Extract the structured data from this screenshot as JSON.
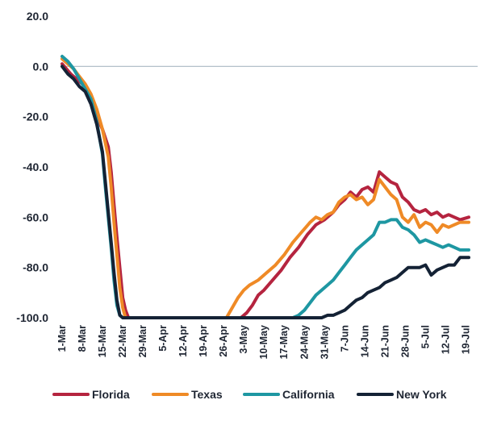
{
  "chart_data": {
    "type": "line",
    "title": "",
    "xlabel": "",
    "ylabel": "",
    "ylim": [
      -100,
      20
    ],
    "yticks": [
      "20.0",
      "0.0",
      "-20.0",
      "-40.0",
      "-60.0",
      "-80.0",
      "-100.0"
    ],
    "x_tick_labels": [
      "1-Mar",
      "8-Mar",
      "15-Mar",
      "22-Mar",
      "29-Mar",
      "5-Apr",
      "12-Apr",
      "19-Apr",
      "26-Apr",
      "3-May",
      "10-May",
      "17-May",
      "24-May",
      "31-May",
      "7-Jun",
      "14-Jun",
      "21-Jun",
      "28-Jun",
      "5-Jul",
      "12-Jul",
      "19-Jul"
    ],
    "x_unit": "days from 1-Mar",
    "xlim": [
      0,
      141
    ],
    "grid": false,
    "reference_line": 0,
    "legend_position": "bottom",
    "series": [
      {
        "name": "Florida",
        "color": "#b5243f",
        "points": [
          [
            0,
            1
          ],
          [
            3,
            -3
          ],
          [
            6,
            -6
          ],
          [
            8,
            -8
          ],
          [
            10,
            -13
          ],
          [
            12,
            -20
          ],
          [
            14,
            -25
          ],
          [
            16,
            -32
          ],
          [
            17,
            -42
          ],
          [
            18,
            -55
          ],
          [
            19,
            -68
          ],
          [
            20,
            -80
          ],
          [
            21,
            -92
          ],
          [
            22,
            -97
          ],
          [
            23,
            -100
          ],
          [
            62,
            -100
          ],
          [
            64,
            -98
          ],
          [
            66,
            -95
          ],
          [
            68,
            -91
          ],
          [
            70,
            -89
          ],
          [
            73,
            -85
          ],
          [
            76,
            -81
          ],
          [
            79,
            -76
          ],
          [
            82,
            -72
          ],
          [
            85,
            -67
          ],
          [
            88,
            -63
          ],
          [
            91,
            -61
          ],
          [
            94,
            -58
          ],
          [
            96,
            -55
          ],
          [
            98,
            -53
          ],
          [
            100,
            -50
          ],
          [
            102,
            -52
          ],
          [
            104,
            -49
          ],
          [
            106,
            -48
          ],
          [
            108,
            -50
          ],
          [
            110,
            -42
          ],
          [
            112,
            -44
          ],
          [
            114,
            -46
          ],
          [
            116,
            -47
          ],
          [
            118,
            -52
          ],
          [
            120,
            -54
          ],
          [
            122,
            -57
          ],
          [
            124,
            -58
          ],
          [
            126,
            -57
          ],
          [
            128,
            -59
          ],
          [
            130,
            -58
          ],
          [
            132,
            -60
          ],
          [
            134,
            -59
          ],
          [
            136,
            -60
          ],
          [
            138,
            -61
          ],
          [
            141,
            -60
          ]
        ]
      },
      {
        "name": "Texas",
        "color": "#ef8a26",
        "points": [
          [
            0,
            3
          ],
          [
            2,
            1
          ],
          [
            4,
            -1
          ],
          [
            6,
            -4
          ],
          [
            8,
            -7
          ],
          [
            10,
            -11
          ],
          [
            12,
            -17
          ],
          [
            14,
            -25
          ],
          [
            16,
            -36
          ],
          [
            17,
            -48
          ],
          [
            18,
            -62
          ],
          [
            19,
            -75
          ],
          [
            20,
            -88
          ],
          [
            21,
            -96
          ],
          [
            22,
            -100
          ],
          [
            57,
            -100
          ],
          [
            59,
            -96
          ],
          [
            61,
            -92
          ],
          [
            63,
            -89
          ],
          [
            65,
            -87
          ],
          [
            68,
            -85
          ],
          [
            71,
            -82
          ],
          [
            74,
            -79
          ],
          [
            77,
            -75
          ],
          [
            80,
            -70
          ],
          [
            83,
            -66
          ],
          [
            86,
            -62
          ],
          [
            88,
            -60
          ],
          [
            90,
            -61
          ],
          [
            92,
            -59
          ],
          [
            94,
            -58
          ],
          [
            96,
            -54
          ],
          [
            98,
            -52
          ],
          [
            100,
            -51
          ],
          [
            102,
            -53
          ],
          [
            104,
            -52
          ],
          [
            106,
            -55
          ],
          [
            108,
            -53
          ],
          [
            110,
            -45
          ],
          [
            112,
            -48
          ],
          [
            114,
            -51
          ],
          [
            116,
            -53
          ],
          [
            118,
            -60
          ],
          [
            120,
            -62
          ],
          [
            122,
            -59
          ],
          [
            124,
            -64
          ],
          [
            126,
            -62
          ],
          [
            128,
            -63
          ],
          [
            130,
            -66
          ],
          [
            132,
            -63
          ],
          [
            134,
            -64
          ],
          [
            136,
            -63
          ],
          [
            138,
            -62
          ],
          [
            141,
            -62
          ]
        ]
      },
      {
        "name": "California",
        "color": "#1e97a2",
        "points": [
          [
            0,
            4
          ],
          [
            2,
            2
          ],
          [
            4,
            -1
          ],
          [
            6,
            -5
          ],
          [
            8,
            -9
          ],
          [
            10,
            -13
          ],
          [
            12,
            -22
          ],
          [
            14,
            -35
          ],
          [
            15,
            -48
          ],
          [
            16,
            -60
          ],
          [
            17,
            -72
          ],
          [
            18,
            -85
          ],
          [
            19,
            -95
          ],
          [
            20,
            -99
          ],
          [
            21,
            -100
          ],
          [
            80,
            -100
          ],
          [
            82,
            -99
          ],
          [
            84,
            -97
          ],
          [
            86,
            -94
          ],
          [
            88,
            -91
          ],
          [
            90,
            -89
          ],
          [
            92,
            -87
          ],
          [
            94,
            -85
          ],
          [
            96,
            -82
          ],
          [
            98,
            -79
          ],
          [
            100,
            -76
          ],
          [
            102,
            -73
          ],
          [
            104,
            -71
          ],
          [
            106,
            -69
          ],
          [
            108,
            -67
          ],
          [
            110,
            -62
          ],
          [
            112,
            -62
          ],
          [
            114,
            -61
          ],
          [
            116,
            -61
          ],
          [
            118,
            -64
          ],
          [
            120,
            -65
          ],
          [
            122,
            -67
          ],
          [
            124,
            -70
          ],
          [
            126,
            -69
          ],
          [
            128,
            -70
          ],
          [
            130,
            -71
          ],
          [
            132,
            -72
          ],
          [
            134,
            -71
          ],
          [
            136,
            -72
          ],
          [
            138,
            -73
          ],
          [
            141,
            -73
          ]
        ]
      },
      {
        "name": "New York",
        "color": "#142235",
        "points": [
          [
            0,
            0
          ],
          [
            2,
            -3
          ],
          [
            4,
            -5
          ],
          [
            6,
            -8
          ],
          [
            8,
            -10
          ],
          [
            10,
            -15
          ],
          [
            12,
            -23
          ],
          [
            14,
            -34
          ],
          [
            15,
            -46
          ],
          [
            16,
            -58
          ],
          [
            17,
            -70
          ],
          [
            18,
            -82
          ],
          [
            19,
            -93
          ],
          [
            20,
            -99
          ],
          [
            21,
            -100
          ],
          [
            90,
            -100
          ],
          [
            92,
            -99
          ],
          [
            94,
            -99
          ],
          [
            96,
            -98
          ],
          [
            98,
            -97
          ],
          [
            100,
            -95
          ],
          [
            102,
            -93
          ],
          [
            104,
            -92
          ],
          [
            106,
            -90
          ],
          [
            108,
            -89
          ],
          [
            110,
            -88
          ],
          [
            112,
            -86
          ],
          [
            114,
            -85
          ],
          [
            116,
            -84
          ],
          [
            118,
            -82
          ],
          [
            120,
            -80
          ],
          [
            122,
            -80
          ],
          [
            124,
            -80
          ],
          [
            126,
            -79
          ],
          [
            128,
            -83
          ],
          [
            130,
            -81
          ],
          [
            132,
            -80
          ],
          [
            134,
            -79
          ],
          [
            136,
            -79
          ],
          [
            138,
            -76
          ],
          [
            141,
            -76
          ]
        ]
      }
    ]
  }
}
